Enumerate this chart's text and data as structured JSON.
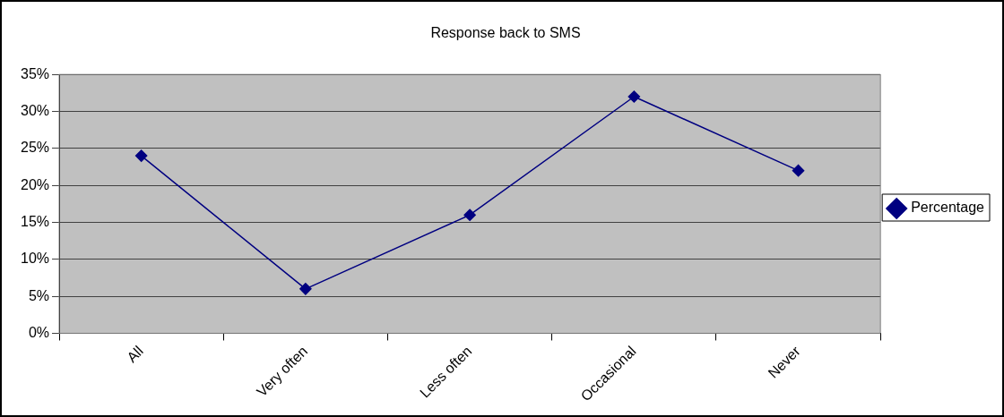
{
  "chart_data": {
    "type": "line",
    "title": "Response back to SMS",
    "categories": [
      "All",
      "Very often",
      "Less often",
      "Occasional",
      "Never"
    ],
    "series": [
      {
        "name": "Percentage",
        "color": "#000080",
        "values": [
          24,
          6,
          16,
          32,
          22
        ]
      }
    ],
    "ylim": [
      0,
      35
    ],
    "yticks": [
      {
        "value": 0,
        "label": "0%"
      },
      {
        "value": 5,
        "label": "5%"
      },
      {
        "value": 10,
        "label": "10%"
      },
      {
        "value": 15,
        "label": "15%"
      },
      {
        "value": 20,
        "label": "20%"
      },
      {
        "value": 25,
        "label": "25%"
      },
      {
        "value": 30,
        "label": "30%"
      },
      {
        "value": 35,
        "label": "35%"
      }
    ],
    "grid": "y",
    "legend": "right",
    "marker": "diamond",
    "line_style": "solid"
  }
}
